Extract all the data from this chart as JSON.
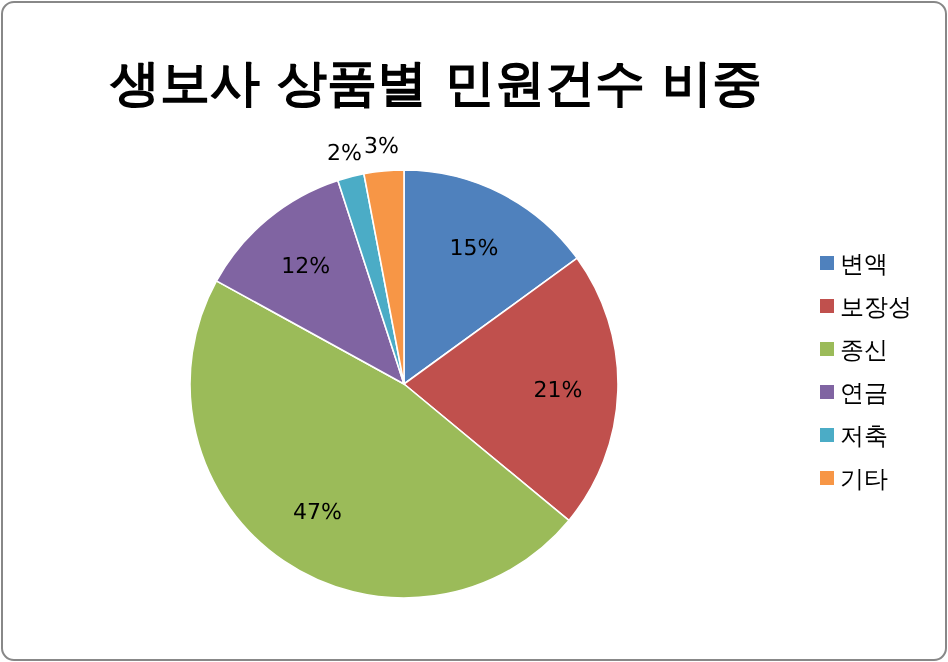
{
  "chart_data": {
    "type": "pie",
    "title": "생보사 상품별 민원건수 비중",
    "categories": [
      "변액",
      "보장성",
      "종신",
      "연금",
      "저축",
      "기타"
    ],
    "values": [
      15,
      21,
      47,
      12,
      2,
      3
    ],
    "value_labels": [
      "15%",
      "21%",
      "47%",
      "12%",
      "2%",
      "3%"
    ],
    "colors": [
      "#4f81bd",
      "#c0504d",
      "#9bbb59",
      "#8064a2",
      "#4bacc6",
      "#f79646"
    ],
    "legend": "right"
  }
}
